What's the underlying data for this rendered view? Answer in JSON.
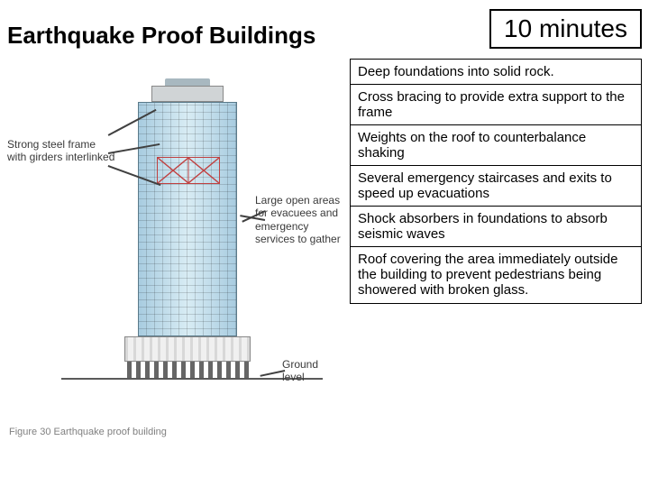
{
  "title": "Earthquake Proof Buildings",
  "time_label": "10 minutes",
  "diagram": {
    "callouts": {
      "frame": "Strong steel frame with girders interlinked",
      "open_area": "Large open areas for evacuees and emergency services to gather",
      "ground": "Ground level"
    },
    "figure_caption": "Figure 30 Earthquake proof building",
    "colors": {
      "building_glass": "#b8d4e8",
      "brace": "#c04040",
      "ground_line": "#5a5a5a",
      "callout_text": "#3a3a3a",
      "border": "#000000"
    },
    "pillar_count": 14
  },
  "facts": [
    "Deep foundations into solid rock.",
    "Cross bracing to provide extra support to the frame",
    "Weights on the roof to counterbalance shaking",
    "Several emergency staircases and exits to speed up evacuations",
    "Shock absorbers in foundations to absorb seismic waves",
    "Roof covering the area immediately outside the building to prevent pedestrians being showered with broken glass."
  ],
  "typography": {
    "title_fontsize": 26,
    "time_fontsize": 28,
    "fact_fontsize": 15,
    "callout_fontsize": 12
  }
}
